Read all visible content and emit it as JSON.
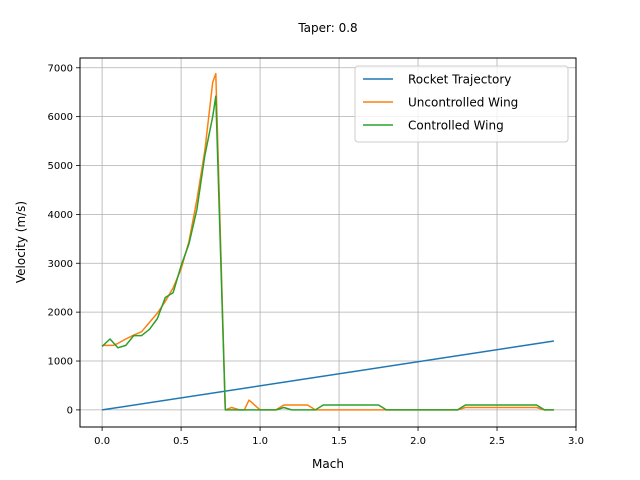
{
  "chart_data": {
    "type": "line",
    "title": "Taper: 0.8",
    "xlabel": "Mach",
    "ylabel": "Velocity (m/s)",
    "xlim": [
      -0.14,
      3.0
    ],
    "ylim": [
      -350,
      7200
    ],
    "xticks": [
      0.0,
      0.5,
      1.0,
      1.5,
      2.0,
      2.5,
      3.0
    ],
    "xtick_labels": [
      "0.0",
      "0.5",
      "1.0",
      "1.5",
      "2.0",
      "2.5",
      "3.0"
    ],
    "yticks": [
      0,
      1000,
      2000,
      3000,
      4000,
      5000,
      6000,
      7000
    ],
    "ytick_labels": [
      "0",
      "1000",
      "2000",
      "3000",
      "4000",
      "5000",
      "6000",
      "7000"
    ],
    "grid": true,
    "legend_position": "top-right",
    "series": [
      {
        "name": "Rocket Trajectory",
        "color": "#1f77b4",
        "x": [
          0.0,
          2.86
        ],
        "y": [
          0,
          1410
        ]
      },
      {
        "name": "Uncontrolled Wing",
        "color": "#ff7f0e",
        "x": [
          0.0,
          0.07,
          0.1,
          0.15,
          0.2,
          0.25,
          0.3,
          0.35,
          0.4,
          0.45,
          0.5,
          0.55,
          0.6,
          0.65,
          0.7,
          0.72,
          0.78,
          0.82,
          0.87,
          0.9,
          0.93,
          1.0,
          1.05,
          1.1,
          1.15,
          1.2,
          1.3,
          1.35,
          1.4,
          1.5,
          1.6,
          1.7,
          1.75,
          1.8,
          1.9,
          2.0,
          2.1,
          2.2,
          2.25,
          2.3,
          2.5,
          2.7,
          2.75,
          2.8,
          2.86
        ],
        "y": [
          1320,
          1320,
          1360,
          1450,
          1530,
          1600,
          1790,
          1980,
          2220,
          2500,
          2880,
          3450,
          4300,
          5300,
          6700,
          6880,
          0,
          50,
          0,
          0,
          200,
          0,
          0,
          0,
          100,
          100,
          100,
          0,
          0,
          0,
          0,
          0,
          0,
          0,
          0,
          0,
          0,
          0,
          0,
          50,
          50,
          50,
          50,
          0,
          0
        ]
      },
      {
        "name": "Controlled Wing",
        "color": "#2ca02c",
        "x": [
          0.0,
          0.05,
          0.1,
          0.15,
          0.2,
          0.25,
          0.3,
          0.35,
          0.4,
          0.45,
          0.5,
          0.55,
          0.6,
          0.65,
          0.7,
          0.72,
          0.78,
          0.82,
          0.87,
          0.9,
          0.95,
          1.0,
          1.05,
          1.1,
          1.15,
          1.2,
          1.3,
          1.35,
          1.4,
          1.5,
          1.6,
          1.7,
          1.75,
          1.8,
          1.9,
          2.0,
          2.1,
          2.2,
          2.25,
          2.3,
          2.5,
          2.7,
          2.75,
          2.8,
          2.86
        ],
        "y": [
          1300,
          1450,
          1270,
          1320,
          1520,
          1520,
          1650,
          1870,
          2300,
          2400,
          2950,
          3400,
          4100,
          5200,
          6000,
          6420,
          0,
          0,
          0,
          0,
          0,
          0,
          0,
          0,
          50,
          0,
          0,
          0,
          100,
          100,
          100,
          100,
          100,
          0,
          0,
          0,
          0,
          0,
          0,
          100,
          100,
          100,
          100,
          0,
          0
        ]
      }
    ]
  }
}
